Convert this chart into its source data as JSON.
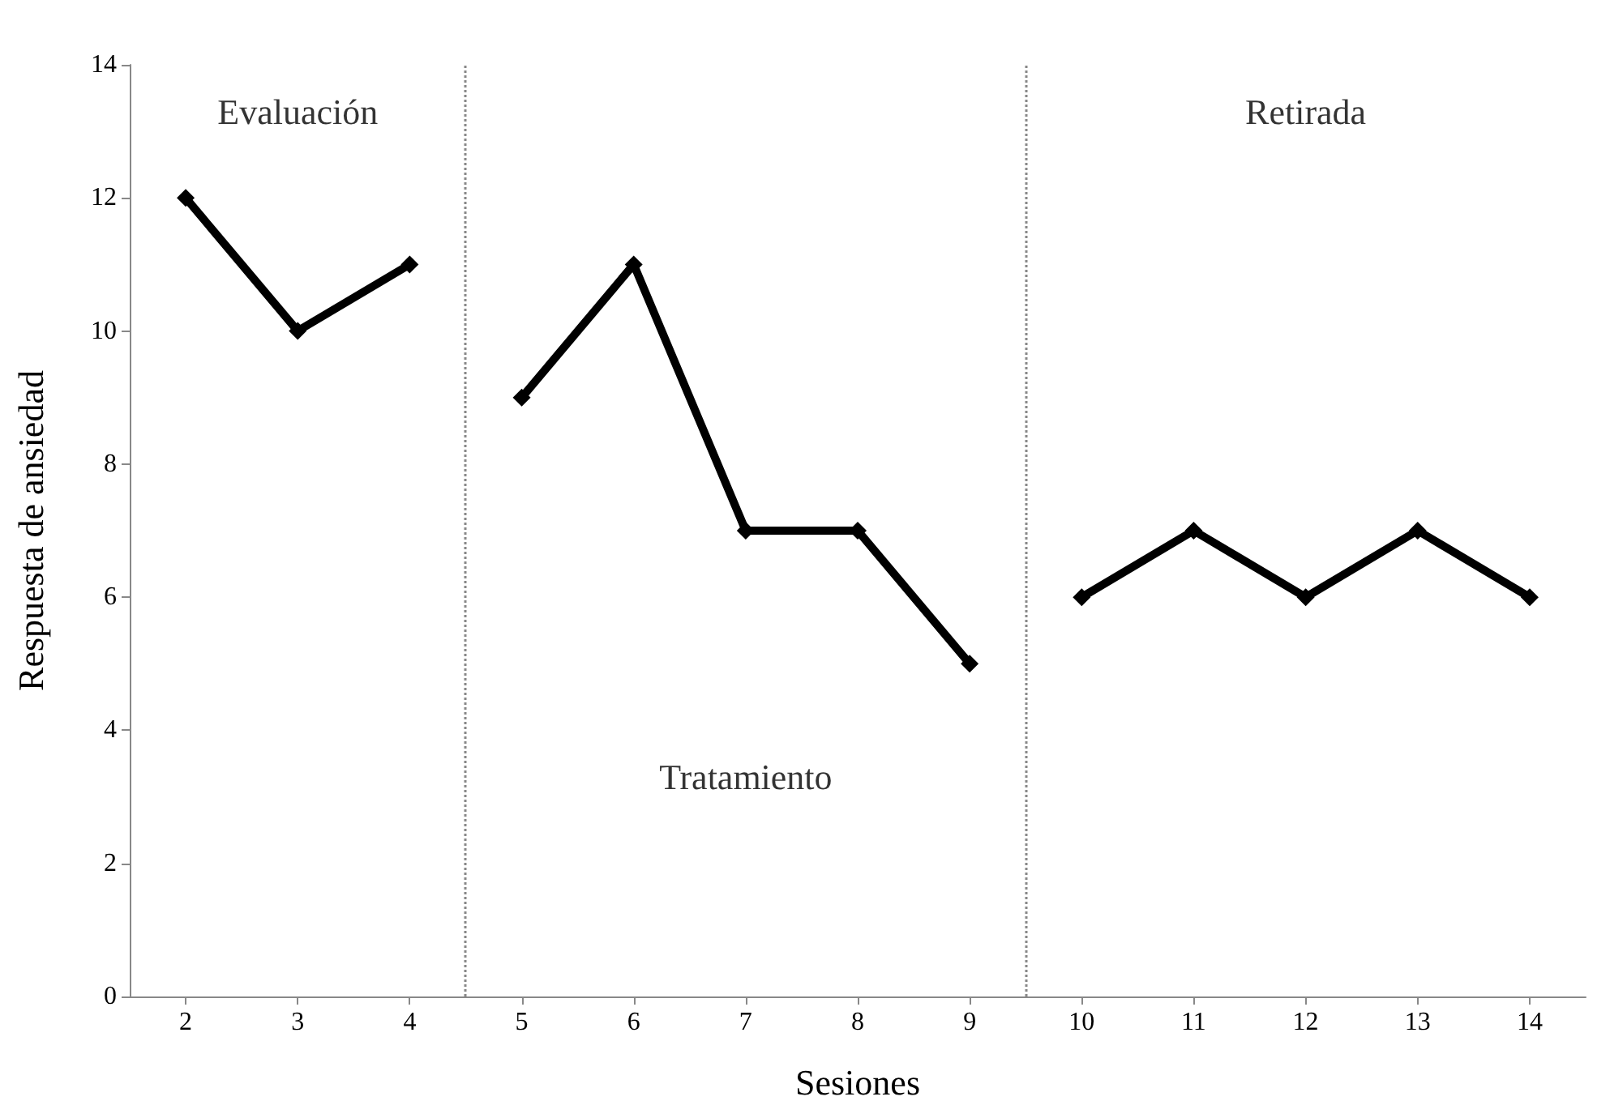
{
  "chart_data": {
    "type": "line",
    "xlabel": "Sesiones",
    "ylabel": "Respuesta de ansiedad",
    "xlim": [
      1.5,
      14.5
    ],
    "xticks": [
      2,
      3,
      4,
      5,
      6,
      7,
      8,
      9,
      10,
      11,
      12,
      13,
      14
    ],
    "ylim": [
      0,
      14
    ],
    "yticks": [
      0,
      2,
      4,
      6,
      8,
      10,
      12,
      14
    ],
    "series": [
      {
        "color": "#000000",
        "x": [
          2,
          3,
          4
        ],
        "values": [
          12,
          10,
          11
        ]
      },
      {
        "color": "#000000",
        "x": [
          5,
          6,
          7,
          8,
          9
        ],
        "values": [
          9,
          11,
          7,
          7,
          5
        ]
      },
      {
        "color": "#000000",
        "x": [
          10,
          11,
          12,
          13,
          14
        ],
        "values": [
          6,
          7,
          6,
          7,
          6
        ]
      }
    ],
    "ref_lines": [
      {
        "axis": "x",
        "value": 4.5,
        "color": "#888888",
        "line_style": "dotted"
      },
      {
        "axis": "x",
        "value": 9.5,
        "color": "#888888",
        "line_style": "dotted"
      }
    ],
    "annotations": [
      "Evaluación",
      "Tratamiento",
      "Retirada"
    ],
    "grid": false,
    "marker": "diamond",
    "line_style": "solid"
  }
}
